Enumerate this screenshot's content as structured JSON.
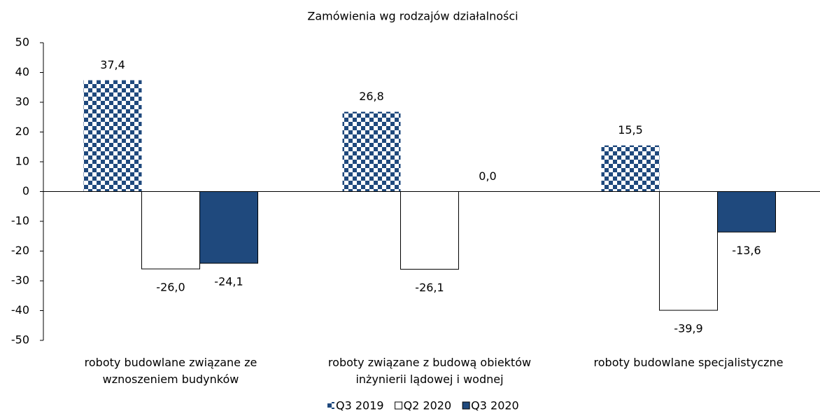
{
  "chart_data": {
    "type": "bar",
    "title": "Zamówienia wg rodzajów działalności",
    "categories": [
      "roboty budowlane związane ze wznoszeniem budynków",
      "roboty związane z budową obiektów inżynierii lądowej i wodnej",
      "roboty budowlane specjalistyczne"
    ],
    "series": [
      {
        "name": "Q3 2019",
        "color": "#1f497d",
        "pattern": "checkerboard",
        "values": [
          37.4,
          26.8,
          15.5
        ],
        "value_labels": [
          "37,4",
          "26,8",
          "15,5"
        ]
      },
      {
        "name": "Q2 2020",
        "color": "#ffffff",
        "values": [
          -26.0,
          -26.1,
          -39.9
        ],
        "value_labels": [
          "-26,0",
          "-26,1",
          "-39,9"
        ]
      },
      {
        "name": "Q3 2020",
        "color": "#1f497d",
        "values": [
          -24.1,
          0.0,
          -13.6
        ],
        "value_labels": [
          "-24,1",
          "0,0",
          "-13,6"
        ]
      }
    ],
    "ylim": [
      -50,
      50
    ],
    "yticks": [
      -50,
      -40,
      -30,
      -20,
      -10,
      0,
      10,
      20,
      30,
      40,
      50
    ],
    "grid": false,
    "legend": "bottom"
  }
}
